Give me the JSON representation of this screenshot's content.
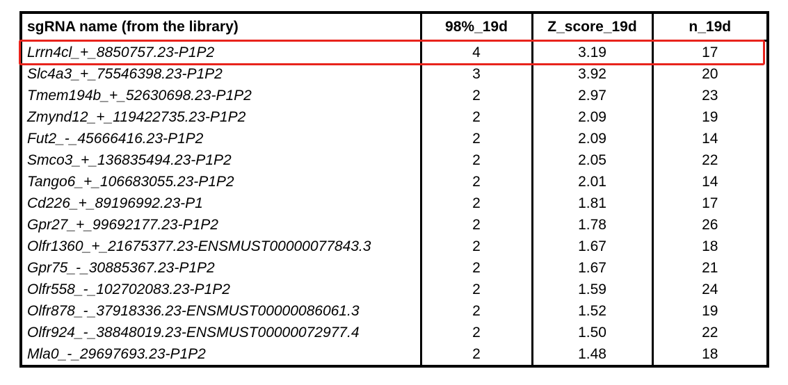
{
  "chart_data": {
    "type": "table",
    "columns": [
      "sgRNA name (from the library)",
      "98%_19d",
      "Z_score_19d",
      "n_19d"
    ],
    "rows": [
      [
        "Lrrn4cl_+_8850757.23-P1P2",
        "4",
        "3.19",
        "17"
      ],
      [
        "Slc4a3_+_75546398.23-P1P2",
        "3",
        "3.92",
        "20"
      ],
      [
        "Tmem194b_+_52630698.23-P1P2",
        "2",
        "2.97",
        "23"
      ],
      [
        "Zmynd12_+_119422735.23-P1P2",
        "2",
        "2.09",
        "19"
      ],
      [
        "Fut2_-_45666416.23-P1P2",
        "2",
        "2.09",
        "14"
      ],
      [
        "Smco3_+_136835494.23-P1P2",
        "2",
        "2.05",
        "22"
      ],
      [
        "Tango6_+_106683055.23-P1P2",
        "2",
        "2.01",
        "14"
      ],
      [
        "Cd226_+_89196992.23-P1",
        "2",
        "1.81",
        "17"
      ],
      [
        "Gpr27_+_99692177.23-P1P2",
        "2",
        "1.78",
        "26"
      ],
      [
        "Olfr1360_+_21675377.23-ENSMUST00000077843.3",
        "2",
        "1.67",
        "18"
      ],
      [
        "Gpr75_-_30885367.23-P1P2",
        "2",
        "1.67",
        "21"
      ],
      [
        "Olfr558_-_102702083.23-P1P2",
        "2",
        "1.59",
        "24"
      ],
      [
        "Olfr878_-_37918336.23-ENSMUST00000086061.3",
        "2",
        "1.52",
        "19"
      ],
      [
        "Olfr924_-_38848019.23-ENSMUST00000072977.4",
        "2",
        "1.50",
        "22"
      ],
      [
        "Mla0_-_29697693.23-P1P2",
        "2",
        "1.48",
        "18"
      ]
    ],
    "highlight": {
      "row_index": 0,
      "color": "#e8231c"
    },
    "colors": {
      "border": "#000000",
      "text": "#000000",
      "background": "#ffffff"
    }
  }
}
